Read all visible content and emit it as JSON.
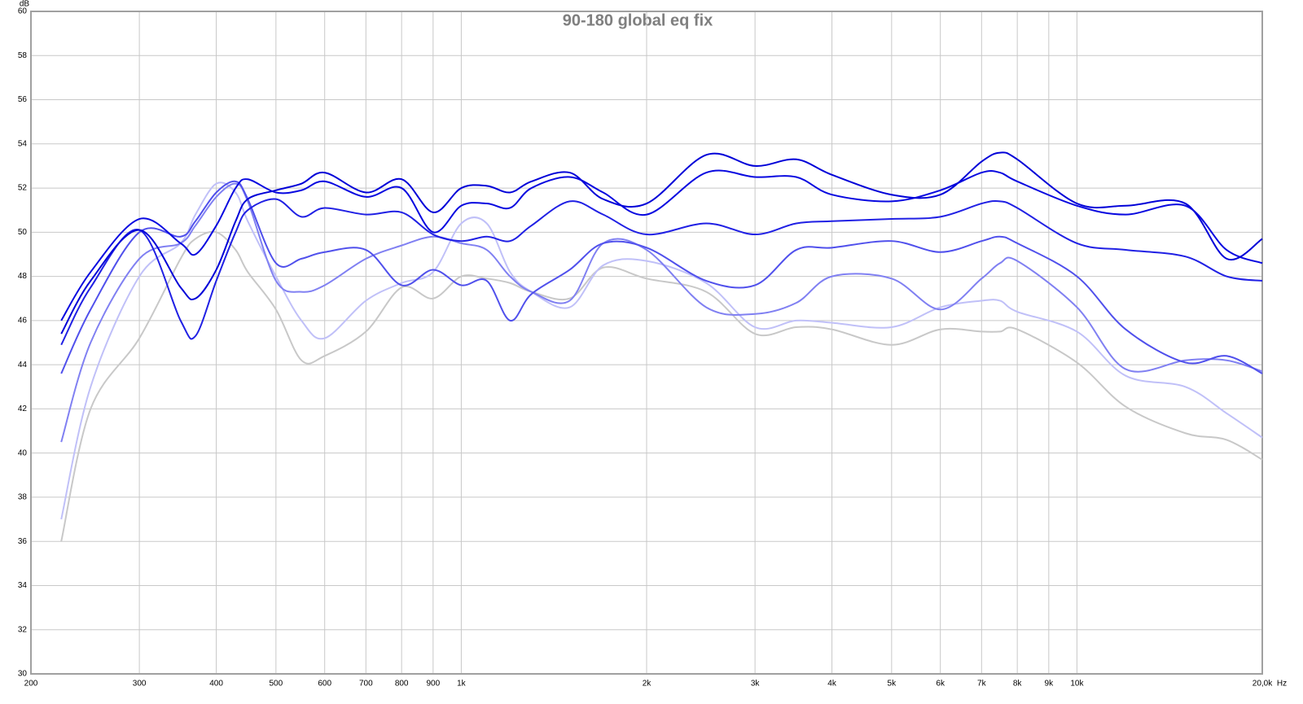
{
  "chart_data": {
    "type": "line",
    "title": "90-180 global eq fix",
    "y_label": "dB",
    "x_unit": "Hz",
    "xscale": "log",
    "grid": true,
    "xlim": [
      200,
      20000
    ],
    "ylim": [
      30,
      60
    ],
    "xticks": [
      200,
      300,
      400,
      500,
      600,
      700,
      800,
      900,
      {
        "value": 1000,
        "label": "1k"
      },
      {
        "value": 2000,
        "label": "2k"
      },
      {
        "value": 3000,
        "label": "3k"
      },
      {
        "value": 4000,
        "label": "4k"
      },
      {
        "value": 5000,
        "label": "5k"
      },
      {
        "value": 6000,
        "label": "6k"
      },
      {
        "value": 7000,
        "label": "7k"
      },
      {
        "value": 8000,
        "label": "8k"
      },
      {
        "value": 9000,
        "label": "9k"
      },
      {
        "value": 10000,
        "label": "10k"
      },
      {
        "value": 20000,
        "label": "20,0k"
      }
    ],
    "yticks": [
      30,
      32,
      34,
      36,
      38,
      40,
      42,
      44,
      46,
      48,
      50,
      52,
      54,
      56,
      58,
      60
    ],
    "x": [
      224,
      250,
      300,
      350,
      370,
      400,
      430,
      450,
      500,
      550,
      600,
      700,
      800,
      900,
      1000,
      1100,
      1200,
      1300,
      1500,
      1700,
      2000,
      2500,
      3000,
      3500,
      4000,
      5000,
      6000,
      7000,
      7500,
      8000,
      10000,
      12000,
      15000,
      17500,
      20000
    ],
    "series": [
      {
        "color": "#0000d8",
        "values": [
          45.4,
          47.8,
          50.1,
          47.5,
          47.0,
          48.3,
          50.5,
          51.5,
          51.9,
          52.2,
          52.7,
          51.8,
          52.4,
          50.9,
          52.0,
          52.1,
          51.8,
          52.3,
          52.7,
          51.5,
          51.3,
          53.5,
          53.0,
          53.3,
          52.6,
          51.7,
          51.7,
          53.2,
          53.6,
          53.3,
          51.3,
          51.2,
          51.3,
          48.8,
          49.7
        ]
      },
      {
        "color": "#0808e0",
        "values": [
          46.0,
          48.2,
          50.6,
          49.5,
          49.0,
          50.3,
          52.0,
          52.4,
          51.8,
          51.9,
          52.3,
          51.6,
          52.0,
          50.0,
          51.2,
          51.3,
          51.1,
          52.0,
          52.5,
          51.8,
          50.8,
          52.7,
          52.5,
          52.5,
          51.7,
          51.4,
          51.9,
          52.7,
          52.7,
          52.3,
          51.2,
          50.8,
          51.2,
          49.2,
          48.6
        ]
      },
      {
        "color": "#2020e4",
        "values": [
          44.9,
          47.5,
          50.1,
          46.0,
          45.3,
          47.8,
          50.0,
          51.0,
          51.5,
          50.7,
          51.1,
          50.8,
          50.9,
          49.9,
          49.6,
          49.8,
          49.6,
          50.3,
          51.4,
          50.8,
          49.9,
          50.4,
          49.9,
          50.4,
          50.5,
          50.6,
          50.7,
          51.3,
          51.4,
          51.1,
          49.5,
          49.2,
          48.9,
          48.0,
          47.8
        ]
      },
      {
        "color": "#5050ec",
        "values": [
          43.6,
          46.5,
          50.0,
          49.8,
          50.5,
          51.8,
          52.3,
          51.5,
          48.6,
          48.8,
          49.1,
          49.2,
          47.6,
          48.3,
          47.6,
          47.8,
          46.0,
          47.2,
          48.3,
          49.5,
          49.3,
          47.8,
          47.6,
          49.2,
          49.3,
          49.6,
          49.1,
          49.6,
          49.8,
          49.5,
          48.0,
          45.6,
          44.1,
          44.4,
          43.6
        ]
      },
      {
        "color": "#8080f2",
        "values": [
          40.5,
          45.0,
          48.8,
          49.5,
          50.3,
          51.6,
          52.2,
          51.4,
          47.8,
          47.3,
          47.6,
          48.8,
          49.4,
          49.8,
          49.5,
          49.2,
          48.0,
          47.3,
          46.9,
          49.5,
          49.2,
          46.6,
          46.3,
          46.8,
          48.0,
          47.9,
          46.5,
          47.9,
          48.6,
          48.7,
          46.6,
          43.8,
          44.2,
          44.2,
          43.7
        ]
      },
      {
        "color": "#c0c0f8",
        "values": [
          37.0,
          43.0,
          48.0,
          49.5,
          50.8,
          52.2,
          51.8,
          50.5,
          48.0,
          46.0,
          45.2,
          46.9,
          47.7,
          48.2,
          50.4,
          50.4,
          48.2,
          47.3,
          46.6,
          48.5,
          48.7,
          47.7,
          45.7,
          46.0,
          45.9,
          45.7,
          46.6,
          46.9,
          46.9,
          46.4,
          45.5,
          43.5,
          43.0,
          41.8,
          40.7
        ]
      },
      {
        "color": "#c8c8c8",
        "values": [
          36.0,
          42.0,
          45.2,
          48.8,
          49.7,
          50.0,
          49.2,
          48.2,
          46.5,
          44.2,
          44.4,
          45.5,
          47.5,
          47.0,
          48.0,
          47.9,
          47.7,
          47.3,
          47.0,
          48.4,
          47.9,
          47.3,
          45.4,
          45.7,
          45.6,
          44.9,
          45.6,
          45.5,
          45.5,
          45.6,
          44.1,
          42.1,
          40.9,
          40.6,
          39.7
        ]
      }
    ]
  }
}
